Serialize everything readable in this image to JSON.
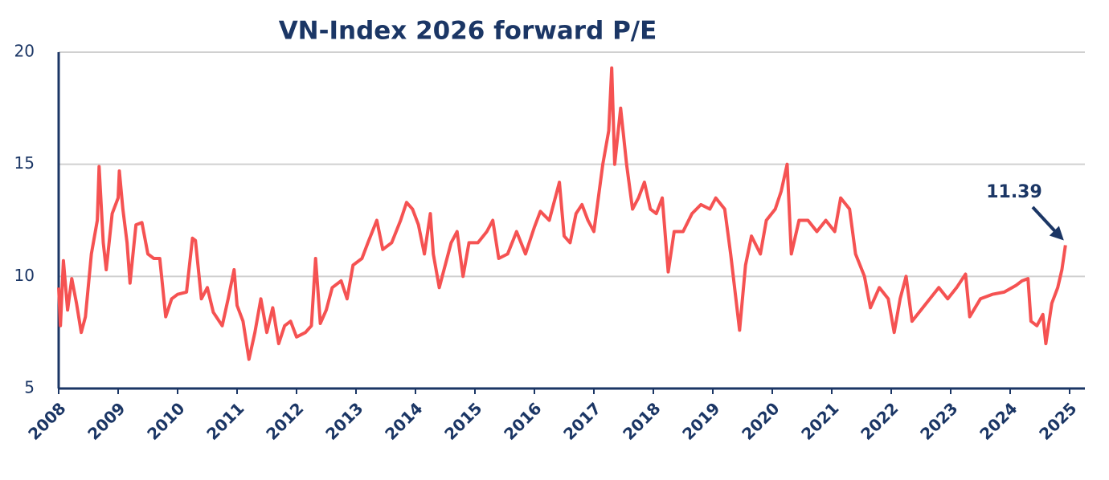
{
  "chart_data": {
    "type": "line",
    "title": "VN-Index 2026 forward P/E",
    "color": "#f55252",
    "annotation": "11.39",
    "x": [
      2008.0,
      2008.03,
      2008.08,
      2008.15,
      2008.22,
      2008.3,
      2008.38,
      2008.45,
      2008.55,
      2008.65,
      2008.68,
      2008.75,
      2008.8,
      2008.9,
      2009.0,
      2009.02,
      2009.08,
      2009.15,
      2009.2,
      2009.3,
      2009.4,
      2009.5,
      2009.6,
      2009.7,
      2009.8,
      2009.9,
      2010.0,
      2010.15,
      2010.25,
      2010.3,
      2010.4,
      2010.5,
      2010.6,
      2010.75,
      2010.85,
      2010.95,
      2011.0,
      2011.1,
      2011.2,
      2011.3,
      2011.4,
      2011.5,
      2011.6,
      2011.7,
      2011.8,
      2011.9,
      2012.0,
      2012.15,
      2012.25,
      2012.32,
      2012.4,
      2012.5,
      2012.6,
      2012.75,
      2012.85,
      2012.95,
      2013.1,
      2013.2,
      2013.35,
      2013.45,
      2013.6,
      2013.75,
      2013.85,
      2013.95,
      2014.05,
      2014.15,
      2014.25,
      2014.3,
      2014.4,
      2014.5,
      2014.6,
      2014.7,
      2014.8,
      2014.9,
      2015.05,
      2015.2,
      2015.3,
      2015.4,
      2015.55,
      2015.7,
      2015.85,
      2016.0,
      2016.1,
      2016.25,
      2016.35,
      2016.42,
      2016.5,
      2016.6,
      2016.7,
      2016.8,
      2016.9,
      2017.0,
      2017.05,
      2017.15,
      2017.25,
      2017.3,
      2017.35,
      2017.45,
      2017.55,
      2017.65,
      2017.75,
      2017.85,
      2017.95,
      2018.05,
      2018.15,
      2018.25,
      2018.35,
      2018.5,
      2018.65,
      2018.8,
      2018.95,
      2019.05,
      2019.2,
      2019.3,
      2019.45,
      2019.55,
      2019.65,
      2019.8,
      2019.9,
      2020.05,
      2020.15,
      2020.25,
      2020.32,
      2020.45,
      2020.6,
      2020.75,
      2020.9,
      2021.05,
      2021.15,
      2021.3,
      2021.4,
      2021.55,
      2021.65,
      2021.8,
      2021.95,
      2022.05,
      2022.15,
      2022.25,
      2022.35,
      2022.5,
      2022.65,
      2022.8,
      2022.95,
      2023.1,
      2023.25,
      2023.32,
      2023.5,
      2023.7,
      2023.9,
      2024.1,
      2024.2,
      2024.3,
      2024.35,
      2024.45,
      2024.55,
      2024.6,
      2024.7,
      2024.8,
      2024.87,
      2024.93
    ],
    "values": [
      9.5,
      7.8,
      10.7,
      8.5,
      9.9,
      8.8,
      7.5,
      8.2,
      11.0,
      12.5,
      14.9,
      11.5,
      10.3,
      12.8,
      13.5,
      14.7,
      13.0,
      11.5,
      9.7,
      12.3,
      12.4,
      11.0,
      10.8,
      10.8,
      8.2,
      9.0,
      9.2,
      9.3,
      11.7,
      11.6,
      9.0,
      9.5,
      8.4,
      7.8,
      9.0,
      10.3,
      8.7,
      8.0,
      6.3,
      7.5,
      9.0,
      7.5,
      8.6,
      7.0,
      7.8,
      8.0,
      7.3,
      7.5,
      7.8,
      10.8,
      7.9,
      8.5,
      9.5,
      9.8,
      9.0,
      10.5,
      10.8,
      11.5,
      12.5,
      11.2,
      11.5,
      12.5,
      13.3,
      13.0,
      12.3,
      11.0,
      12.8,
      11.0,
      9.5,
      10.5,
      11.5,
      12.0,
      10.0,
      11.5,
      11.5,
      12.0,
      12.5,
      10.8,
      11.0,
      12.0,
      11.0,
      12.2,
      12.9,
      12.5,
      13.5,
      14.2,
      11.8,
      11.5,
      12.8,
      13.2,
      12.5,
      12.0,
      13.0,
      15.0,
      16.5,
      19.3,
      15.0,
      17.5,
      15.0,
      13.0,
      13.5,
      14.2,
      13.0,
      12.8,
      13.5,
      10.2,
      12.0,
      12.0,
      12.8,
      13.2,
      13.0,
      13.5,
      13.0,
      11.0,
      7.6,
      10.5,
      11.8,
      11.0,
      12.5,
      13.0,
      13.8,
      15.0,
      11.0,
      12.5,
      12.5,
      12.0,
      12.5,
      12.0,
      13.5,
      13.0,
      11.0,
      10.0,
      8.6,
      9.5,
      9.0,
      7.5,
      9.0,
      10.0,
      8.0,
      8.5,
      9.0,
      9.5,
      9.0,
      9.5,
      10.1,
      8.2,
      9.0,
      9.2,
      9.3,
      9.6,
      9.8,
      9.9,
      8.0,
      7.8,
      8.3,
      7.0,
      8.8,
      9.5,
      10.3,
      11.39
    ],
    "xlim": [
      2008,
      2025
    ],
    "xticks": [
      2008,
      2009,
      2010,
      2011,
      2012,
      2013,
      2014,
      2015,
      2016,
      2017,
      2018,
      2019,
      2020,
      2021,
      2022,
      2023,
      2024,
      2025
    ],
    "ylim": [
      5,
      20
    ],
    "yticks": [
      5,
      10,
      15,
      20
    ],
    "grid": true
  }
}
